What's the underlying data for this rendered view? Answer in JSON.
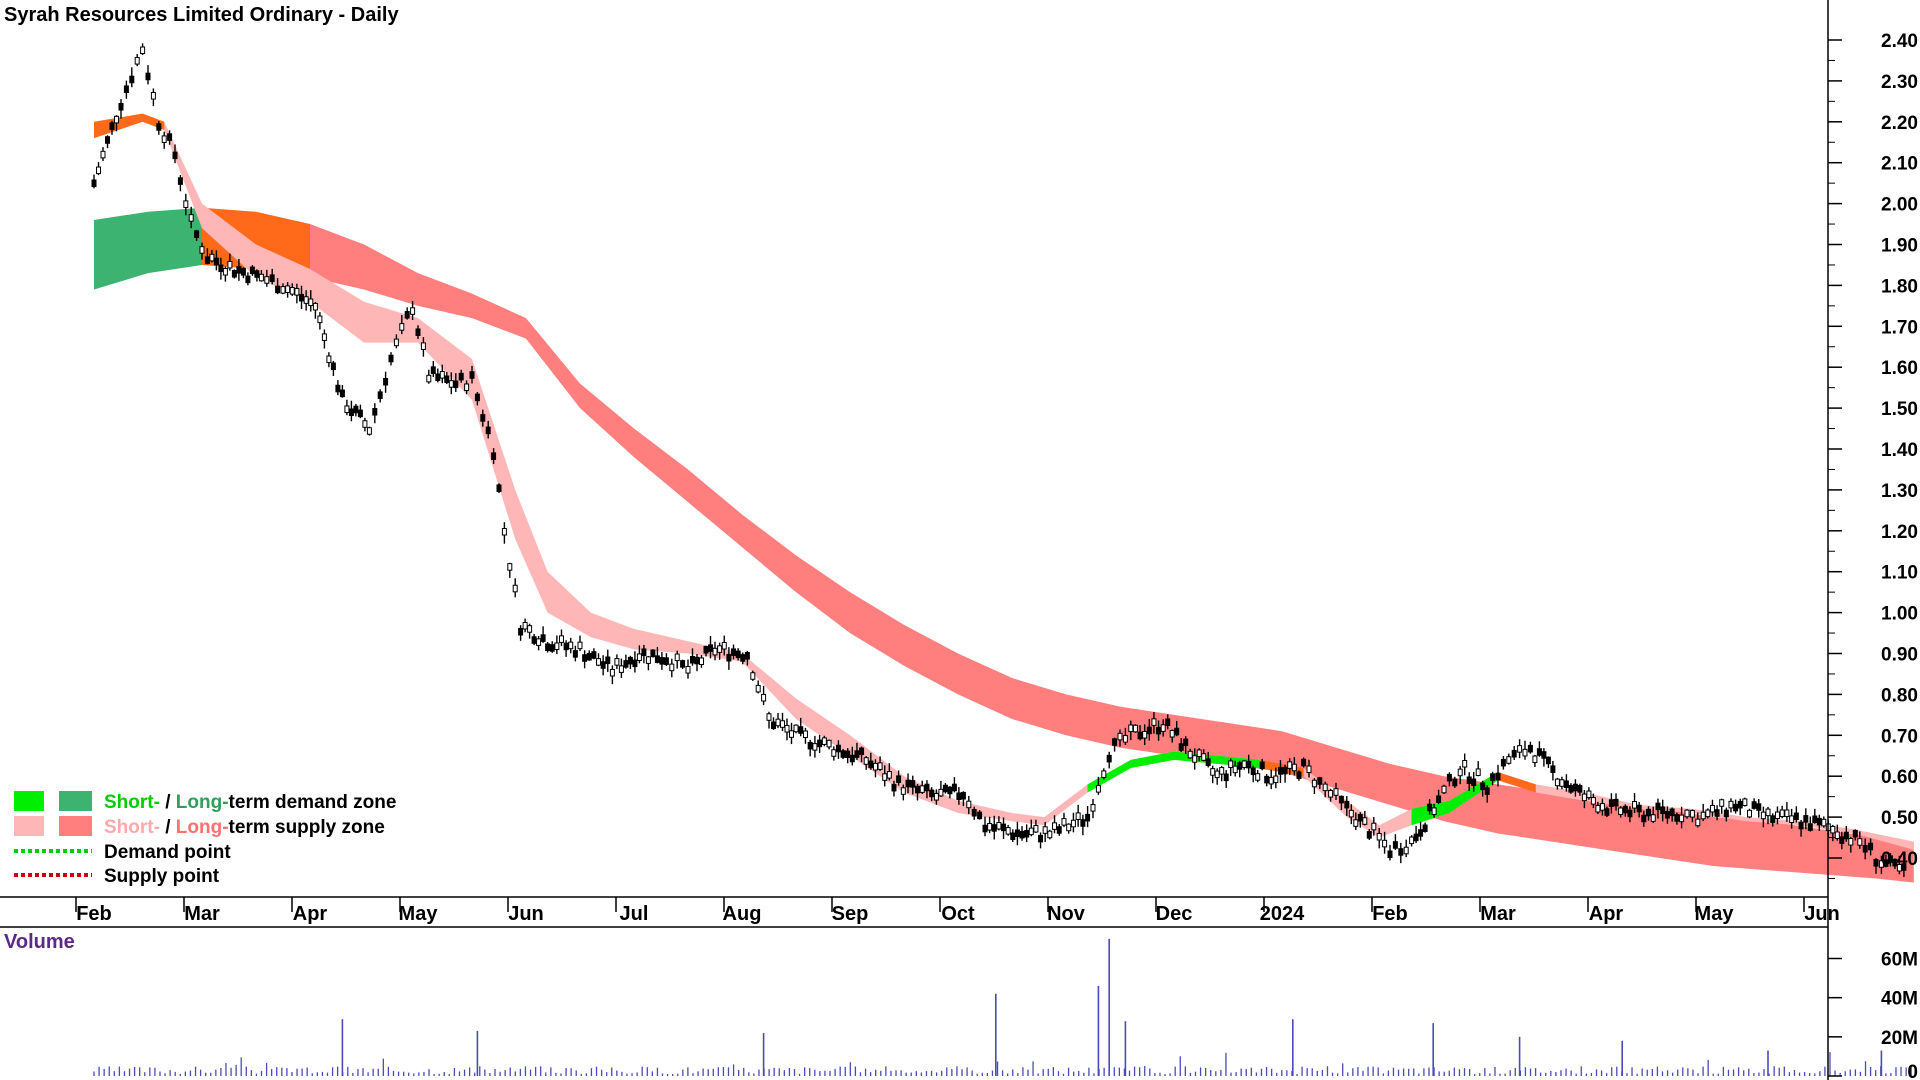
{
  "chart_data": {
    "type": "candlestick",
    "title": "Syrah Resources Limited Ordinary - Daily",
    "x_labels": [
      "Feb",
      "Mar",
      "Apr",
      "May",
      "Jun",
      "Jul",
      "Aug",
      "Sep",
      "Oct",
      "Nov",
      "Dec",
      "2024",
      "Feb",
      "Mar",
      "Apr",
      "May",
      "Jun"
    ],
    "y_ticks": [
      "2.40",
      "2.30",
      "2.20",
      "2.10",
      "2.00",
      "1.90",
      "1.80",
      "1.70",
      "1.60",
      "1.50",
      "1.40",
      "1.30",
      "1.20",
      "1.10",
      "1.00",
      "0.90",
      "0.80",
      "0.70",
      "0.60",
      "0.50",
      "0.40"
    ],
    "ylim": [
      0.35,
      2.42
    ],
    "price_series": {
      "name": "Price (approx. daily close)",
      "points": [
        [
          0.0,
          2.05
        ],
        [
          0.25,
          2.25
        ],
        [
          0.45,
          2.38
        ],
        [
          0.6,
          2.2
        ],
        [
          0.75,
          2.12
        ],
        [
          0.9,
          1.95
        ],
        [
          1.05,
          1.87
        ],
        [
          1.3,
          1.84
        ],
        [
          1.55,
          1.82
        ],
        [
          1.75,
          1.8
        ],
        [
          2.05,
          1.75
        ],
        [
          2.3,
          1.52
        ],
        [
          2.55,
          1.45
        ],
        [
          2.75,
          1.62
        ],
        [
          2.95,
          1.75
        ],
        [
          3.1,
          1.58
        ],
        [
          3.35,
          1.56
        ],
        [
          3.5,
          1.57
        ],
        [
          3.7,
          1.4
        ],
        [
          3.8,
          1.2
        ],
        [
          3.95,
          0.97
        ],
        [
          4.2,
          0.93
        ],
        [
          4.5,
          0.91
        ],
        [
          4.8,
          0.86
        ],
        [
          5.05,
          0.9
        ],
        [
          5.3,
          0.89
        ],
        [
          5.5,
          0.86
        ],
        [
          5.75,
          0.91
        ],
        [
          6.05,
          0.9
        ],
        [
          6.25,
          0.74
        ],
        [
          6.5,
          0.7
        ],
        [
          6.85,
          0.67
        ],
        [
          7.15,
          0.64
        ],
        [
          7.45,
          0.58
        ],
        [
          7.8,
          0.55
        ],
        [
          8.05,
          0.56
        ],
        [
          8.25,
          0.48
        ],
        [
          8.55,
          0.46
        ],
        [
          8.85,
          0.46
        ],
        [
          9.2,
          0.5
        ],
        [
          9.4,
          0.66
        ],
        [
          9.6,
          0.7
        ],
        [
          9.9,
          0.73
        ],
        [
          10.15,
          0.66
        ],
        [
          10.4,
          0.6
        ],
        [
          10.65,
          0.63
        ],
        [
          10.9,
          0.6
        ],
        [
          11.2,
          0.62
        ],
        [
          11.4,
          0.57
        ],
        [
          11.6,
          0.52
        ],
        [
          11.85,
          0.46
        ],
        [
          12.0,
          0.42
        ],
        [
          12.2,
          0.44
        ],
        [
          12.45,
          0.54
        ],
        [
          12.65,
          0.62
        ],
        [
          12.9,
          0.58
        ],
        [
          13.1,
          0.64
        ],
        [
          13.3,
          0.67
        ],
        [
          13.55,
          0.6
        ],
        [
          13.8,
          0.55
        ],
        [
          14.05,
          0.52
        ],
        [
          14.35,
          0.51
        ],
        [
          14.7,
          0.51
        ],
        [
          14.9,
          0.5
        ],
        [
          15.2,
          0.53
        ],
        [
          15.5,
          0.5
        ],
        [
          15.85,
          0.49
        ],
        [
          16.1,
          0.47
        ],
        [
          16.35,
          0.44
        ],
        [
          16.55,
          0.39
        ],
        [
          16.8,
          0.36
        ]
      ]
    },
    "short_term_zone": {
      "name": "Short-term zone",
      "upper": [
        [
          0.0,
          2.2
        ],
        [
          0.45,
          2.22
        ],
        [
          0.65,
          2.2
        ],
        [
          1.0,
          2.0
        ],
        [
          1.5,
          1.9
        ],
        [
          2.0,
          1.84
        ],
        [
          2.5,
          1.76
        ],
        [
          3.0,
          1.72
        ],
        [
          3.5,
          1.62
        ],
        [
          3.9,
          1.3
        ],
        [
          4.2,
          1.1
        ],
        [
          4.6,
          1.0
        ],
        [
          5.0,
          0.96
        ],
        [
          5.5,
          0.93
        ],
        [
          6.0,
          0.9
        ],
        [
          6.5,
          0.79
        ],
        [
          7.0,
          0.7
        ],
        [
          7.5,
          0.6
        ],
        [
          8.0,
          0.54
        ],
        [
          8.5,
          0.51
        ],
        [
          8.8,
          0.5
        ],
        [
          9.2,
          0.58
        ],
        [
          9.6,
          0.64
        ],
        [
          10.0,
          0.66
        ],
        [
          10.4,
          0.65
        ],
        [
          10.8,
          0.64
        ],
        [
          11.2,
          0.62
        ],
        [
          11.6,
          0.54
        ],
        [
          11.9,
          0.48
        ],
        [
          12.2,
          0.52
        ],
        [
          12.55,
          0.54
        ],
        [
          13.0,
          0.61
        ],
        [
          13.35,
          0.58
        ],
        [
          13.8,
          0.56
        ],
        [
          14.3,
          0.53
        ],
        [
          14.8,
          0.52
        ],
        [
          15.3,
          0.5
        ],
        [
          15.8,
          0.49
        ],
        [
          16.3,
          0.47
        ],
        [
          16.85,
          0.44
        ]
      ],
      "lower": [
        [
          0.0,
          2.16
        ],
        [
          0.45,
          2.2
        ],
        [
          0.65,
          2.18
        ],
        [
          1.0,
          1.94
        ],
        [
          1.5,
          1.82
        ],
        [
          2.0,
          1.76
        ],
        [
          2.5,
          1.66
        ],
        [
          3.0,
          1.66
        ],
        [
          3.5,
          1.52
        ],
        [
          3.9,
          1.18
        ],
        [
          4.2,
          1.0
        ],
        [
          4.6,
          0.94
        ],
        [
          5.0,
          0.91
        ],
        [
          5.5,
          0.9
        ],
        [
          6.0,
          0.88
        ],
        [
          6.5,
          0.74
        ],
        [
          7.0,
          0.65
        ],
        [
          7.5,
          0.56
        ],
        [
          8.0,
          0.51
        ],
        [
          8.5,
          0.49
        ],
        [
          8.8,
          0.48
        ],
        [
          9.2,
          0.56
        ],
        [
          9.6,
          0.62
        ],
        [
          10.0,
          0.64
        ],
        [
          10.4,
          0.63
        ],
        [
          10.8,
          0.62
        ],
        [
          11.2,
          0.6
        ],
        [
          11.6,
          0.5
        ],
        [
          11.9,
          0.45
        ],
        [
          12.2,
          0.48
        ],
        [
          12.55,
          0.51
        ],
        [
          13.0,
          0.59
        ],
        [
          13.35,
          0.56
        ],
        [
          13.8,
          0.54
        ],
        [
          14.3,
          0.52
        ],
        [
          14.8,
          0.51
        ],
        [
          15.3,
          0.49
        ],
        [
          15.8,
          0.48
        ],
        [
          16.3,
          0.46
        ],
        [
          16.85,
          0.42
        ]
      ]
    },
    "long_term_zone": {
      "name": "Long-term zone",
      "upper": [
        [
          0.0,
          1.96
        ],
        [
          0.5,
          1.98
        ],
        [
          1.0,
          1.99
        ],
        [
          1.5,
          1.98
        ],
        [
          2.0,
          1.95
        ],
        [
          2.5,
          1.9
        ],
        [
          3.0,
          1.83
        ],
        [
          3.5,
          1.78
        ],
        [
          4.0,
          1.72
        ],
        [
          4.5,
          1.56
        ],
        [
          5.0,
          1.45
        ],
        [
          5.5,
          1.35
        ],
        [
          6.0,
          1.24
        ],
        [
          6.5,
          1.14
        ],
        [
          7.0,
          1.05
        ],
        [
          7.5,
          0.97
        ],
        [
          8.0,
          0.9
        ],
        [
          8.5,
          0.84
        ],
        [
          9.0,
          0.8
        ],
        [
          9.5,
          0.77
        ],
        [
          10.0,
          0.75
        ],
        [
          10.5,
          0.73
        ],
        [
          11.0,
          0.71
        ],
        [
          11.5,
          0.67
        ],
        [
          12.0,
          0.63
        ],
        [
          12.5,
          0.6
        ],
        [
          13.0,
          0.58
        ],
        [
          13.5,
          0.56
        ],
        [
          14.0,
          0.54
        ],
        [
          14.5,
          0.52
        ],
        [
          15.0,
          0.5
        ],
        [
          15.5,
          0.49
        ],
        [
          16.0,
          0.47
        ],
        [
          16.5,
          0.45
        ],
        [
          16.85,
          0.44
        ]
      ],
      "lower": [
        [
          0.0,
          1.79
        ],
        [
          0.5,
          1.83
        ],
        [
          1.0,
          1.85
        ],
        [
          1.5,
          1.84
        ],
        [
          2.0,
          1.82
        ],
        [
          2.5,
          1.79
        ],
        [
          3.0,
          1.75
        ],
        [
          3.5,
          1.72
        ],
        [
          4.0,
          1.67
        ],
        [
          4.5,
          1.5
        ],
        [
          5.0,
          1.38
        ],
        [
          5.5,
          1.27
        ],
        [
          6.0,
          1.16
        ],
        [
          6.5,
          1.05
        ],
        [
          7.0,
          0.95
        ],
        [
          7.5,
          0.87
        ],
        [
          8.0,
          0.8
        ],
        [
          8.5,
          0.74
        ],
        [
          9.0,
          0.7
        ],
        [
          9.5,
          0.67
        ],
        [
          10.0,
          0.65
        ],
        [
          10.5,
          0.63
        ],
        [
          11.0,
          0.61
        ],
        [
          11.5,
          0.57
        ],
        [
          12.0,
          0.53
        ],
        [
          12.5,
          0.49
        ],
        [
          13.0,
          0.46
        ],
        [
          13.5,
          0.44
        ],
        [
          14.0,
          0.42
        ],
        [
          14.5,
          0.4
        ],
        [
          15.0,
          0.38
        ],
        [
          15.5,
          0.37
        ],
        [
          16.0,
          0.36
        ],
        [
          16.5,
          0.35
        ],
        [
          16.85,
          0.34
        ]
      ]
    },
    "volume": {
      "title": "Volume",
      "y_ticks": [
        "60M",
        "40M",
        "20M",
        "0"
      ],
      "ylim": [
        0,
        72
      ],
      "spikes": [
        [
          2.3,
          29
        ],
        [
          3.55,
          23
        ],
        [
          6.2,
          22
        ],
        [
          8.35,
          42
        ],
        [
          9.3,
          46
        ],
        [
          9.4,
          70
        ],
        [
          9.55,
          28
        ],
        [
          11.1,
          29
        ],
        [
          12.4,
          27
        ],
        [
          13.2,
          20
        ],
        [
          14.15,
          18
        ],
        [
          15.5,
          13
        ],
        [
          16.55,
          13
        ]
      ]
    },
    "legend": [
      {
        "short": "Short-",
        "sep": " / ",
        "long": "Long-",
        "rest": "term demand zone"
      },
      {
        "short": "Short-",
        "sep": " / ",
        "long": "Long-",
        "rest": "term supply zone"
      },
      {
        "label": "Demand point"
      },
      {
        "label": "Supply point"
      }
    ],
    "colors": {
      "candle": "#000000",
      "demand_short": "#00ee00",
      "demand_long": "#3cb371",
      "supply_short": "#ffb6b6",
      "supply_long": "#ff7f7f",
      "transition": "#ff6a1a",
      "volume_bar": "#4b4bb8",
      "volume_title": "#5a2a86",
      "axis": "#000000"
    }
  }
}
